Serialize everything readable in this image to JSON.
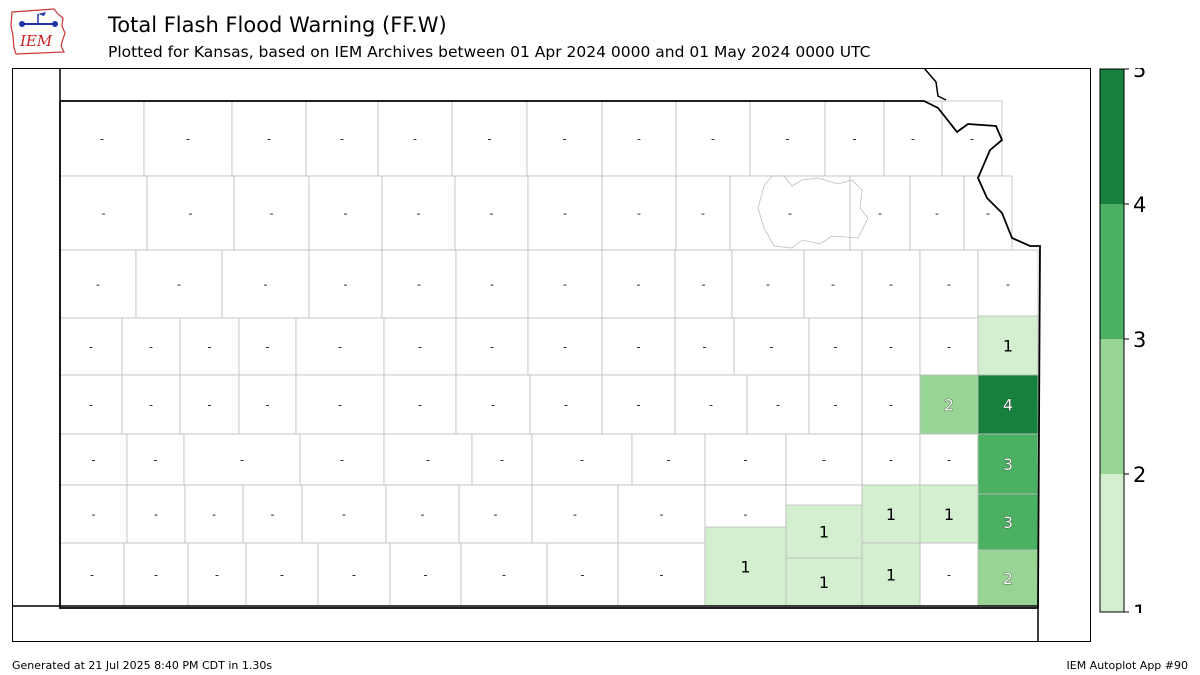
{
  "header": {
    "title": "Total Flash Flood Warning (FF.W)",
    "subtitle": "Plotted for Kansas, based on IEM Archives  between 01 Apr 2024 0000 and 01 May 2024 0000 UTC",
    "logo_text": "IEM"
  },
  "footer": {
    "generated": "Generated at 21 Jul 2025 8:40 PM CDT in 1.30s",
    "app": "IEM Autoplot App #90"
  },
  "colors": {
    "level1": "#d3efcf",
    "level2": "#98d594",
    "level3": "#4bb062",
    "level4": "#16803c",
    "county_line": "#bdbdbd",
    "state_line": "#000000"
  },
  "colorbar": {
    "ticks": [
      "1",
      "2",
      "3",
      "4",
      "5"
    ]
  },
  "map": {
    "empty_marker": "-",
    "counts": [
      {
        "id": "leavenworth-wyandotte",
        "value": "1"
      },
      {
        "id": "miami",
        "value": "2"
      },
      {
        "id": "linn",
        "value": "4"
      },
      {
        "id": "bourbon",
        "value": "3"
      },
      {
        "id": "crawford",
        "value": "3"
      },
      {
        "id": "cherokee",
        "value": "2"
      },
      {
        "id": "wilson",
        "value": "1"
      },
      {
        "id": "neosho",
        "value": "1"
      },
      {
        "id": "montgomery",
        "value": "1"
      },
      {
        "id": "labette",
        "value": "1"
      },
      {
        "id": "chautauqua",
        "value": "1"
      },
      {
        "id": "cowley",
        "value": "1"
      }
    ]
  }
}
